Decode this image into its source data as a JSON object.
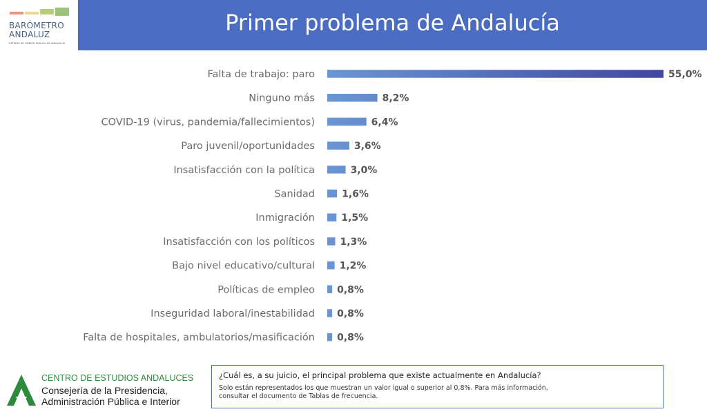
{
  "logo": {
    "line1": "BARÓMETRO",
    "line2": "ANDALUZ",
    "subtitle": "ESTUDIO DE OPINIÓN PÚBLICA DE ANDALUCÍA",
    "colors": [
      "#e8967a",
      "#e9d98a",
      "#b5cc7a",
      "#9dc37c"
    ]
  },
  "header": {
    "title": "Primer problema de Andalucía",
    "color": "#4a6cc2"
  },
  "chart_data": {
    "type": "bar",
    "orientation": "horizontal",
    "categories": [
      "Falta de trabajo: paro",
      "Ninguno más",
      "COVID-19 (virus, pandemia/fallecimientos)",
      "Paro juvenil/oportunidades",
      "Insatisfacción con la política",
      "Sanidad",
      "Inmigración",
      "Insatisfacción con los políticos",
      "Bajo nivel educativo/cultural",
      "Políticas de empleo",
      "Inseguridad laboral/inestabilidad",
      "Falta de hospitales, ambulatorios/masificación"
    ],
    "values": [
      55.0,
      8.2,
      6.4,
      3.6,
      3.0,
      1.6,
      1.5,
      1.3,
      1.2,
      0.8,
      0.8,
      0.8
    ],
    "value_labels": [
      "55,0%",
      "8,2%",
      "6,4%",
      "3,6%",
      "3,0%",
      "1,6%",
      "1,5%",
      "1,3%",
      "1,2%",
      "0,8%",
      "0,8%",
      "0,8%"
    ],
    "xlim": [
      0,
      55
    ],
    "colors": {
      "bar_start": "#6a95d4",
      "bar_end": "#4048a0"
    },
    "grid": false,
    "legend": "none"
  },
  "footer": {
    "org": "CENTRO DE ESTUDIOS ANDALUCES",
    "dept_line1": "Consejería de la Presidencia,",
    "dept_line2": "Administración Pública e Interior"
  },
  "note": {
    "question": "¿Cuál es, a su juicio, el principal problema que existe actualmente en Andalucía?",
    "text_line1": "Solo están representados los que muestran un valor igual o superior al 0,8%. Para más información,",
    "text_line2": "consultar el documento de Tablas de frecuencia."
  }
}
